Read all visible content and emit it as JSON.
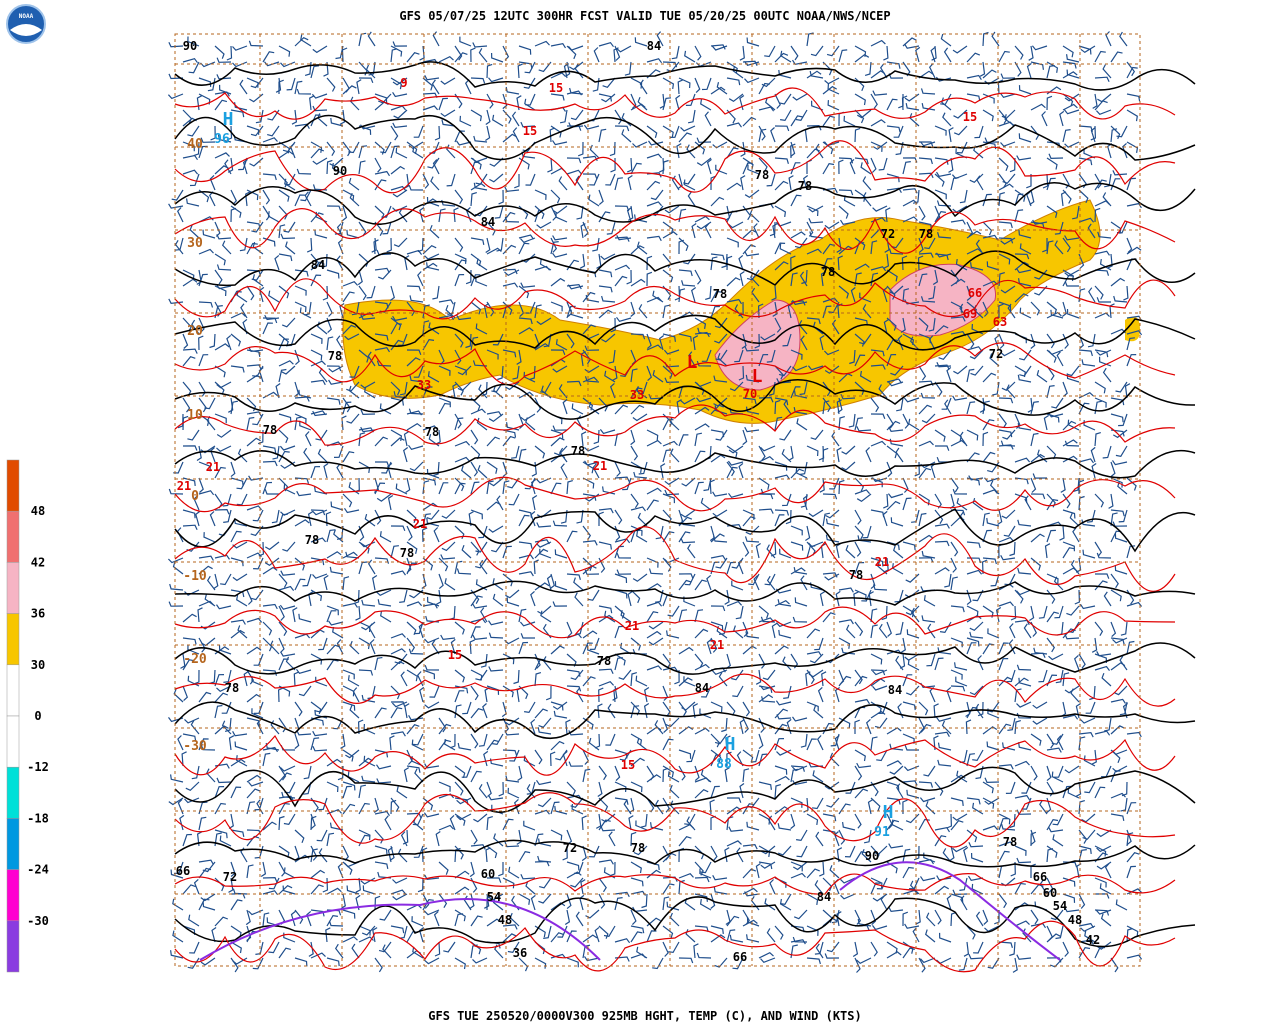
{
  "header": {
    "title": "GFS 05/07/25 12UTC 300HR FCST VALID TUE 05/20/25 00UTC NOAA/NWS/NCEP"
  },
  "footer": {
    "caption": "GFS TUE 250520/0000V300 925MB HGHT, TEMP (C), AND WIND (KTS)"
  },
  "logo": {
    "text": "NOAA"
  },
  "colorbar": {
    "labels": [
      "48",
      "42",
      "36",
      "30",
      "0",
      "-12",
      "-18",
      "-24",
      "-30"
    ],
    "colors": [
      "#e14b00",
      "#f07070",
      "#f6b4c4",
      "#f7c600",
      "#ffffff",
      "#ffffff",
      "#00e0d8",
      "#0098e0",
      "#ff00d0",
      "#8a3ce0"
    ]
  },
  "map": {
    "lat_labels": [
      "40",
      "30",
      "20",
      "10",
      "0",
      "-10",
      "-20",
      "-30"
    ],
    "highs": [
      {
        "letter": "H",
        "value": "96"
      },
      {
        "letter": "H",
        "value": "88"
      },
      {
        "letter": "H",
        "value": "91"
      }
    ],
    "lows": [
      "L",
      "L"
    ],
    "height_labels": [
      "90",
      "90",
      "78",
      "78",
      "78",
      "78",
      "78",
      "78",
      "78",
      "78",
      "78",
      "84",
      "84",
      "84",
      "84",
      "84",
      "72",
      "72",
      "66",
      "60",
      "54",
      "48",
      "36",
      "66",
      "78",
      "84",
      "90",
      "78",
      "66",
      "60",
      "54",
      "48",
      "42",
      "78",
      "78",
      "78",
      "78",
      "72",
      "78",
      "72"
    ],
    "temp_labels": [
      "70",
      "33",
      "33",
      "21",
      "21",
      "21",
      "21",
      "21",
      "21",
      "21",
      "15",
      "15",
      "15",
      "15",
      "15",
      "9",
      "69",
      "63",
      "66"
    ]
  }
}
